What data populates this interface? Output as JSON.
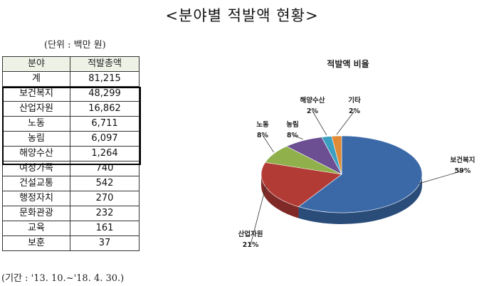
{
  "page_title": "<분야별 적발액 현황>",
  "unit_label": "(단위 : 백만 원)",
  "footnote": "(기간 : '13. 10.~'18. 4. 30.)",
  "table": {
    "headers": [
      "분야",
      "적발총액"
    ],
    "rows": [
      {
        "field": "계",
        "amount": "81,215"
      },
      {
        "field": "보건복지",
        "amount": "48,299"
      },
      {
        "field": "산업자원",
        "amount": "16,862"
      },
      {
        "field": "노동",
        "amount": "6,711"
      },
      {
        "field": "농림",
        "amount": "6,097"
      },
      {
        "field": "해양수산",
        "amount": "1,264"
      },
      {
        "field": "여성가족",
        "amount": "740"
      },
      {
        "field": "건설교통",
        "amount": "542"
      },
      {
        "field": "행정자치",
        "amount": "270"
      },
      {
        "field": "문화관광",
        "amount": "232"
      },
      {
        "field": "교육",
        "amount": "161"
      },
      {
        "field": "보훈",
        "amount": "37"
      }
    ]
  },
  "chart_data": {
    "type": "pie",
    "title": "적발액 비율",
    "slices": [
      {
        "label": "보건복지",
        "pct_label": "59%",
        "value": 59,
        "color": "#3b69a8"
      },
      {
        "label": "산업자원",
        "pct_label": "21%",
        "value": 21,
        "color": "#b23b36"
      },
      {
        "label": "노동",
        "pct_label": "8%",
        "value": 8,
        "color": "#8fb04a"
      },
      {
        "label": "농림",
        "pct_label": "8%",
        "value": 8,
        "color": "#6c4f92"
      },
      {
        "label": "해양수산",
        "pct_label": "2%",
        "value": 2,
        "color": "#3a9fc0"
      },
      {
        "label": "기타",
        "pct_label": "2%",
        "value": 2,
        "color": "#e08a35"
      }
    ]
  }
}
